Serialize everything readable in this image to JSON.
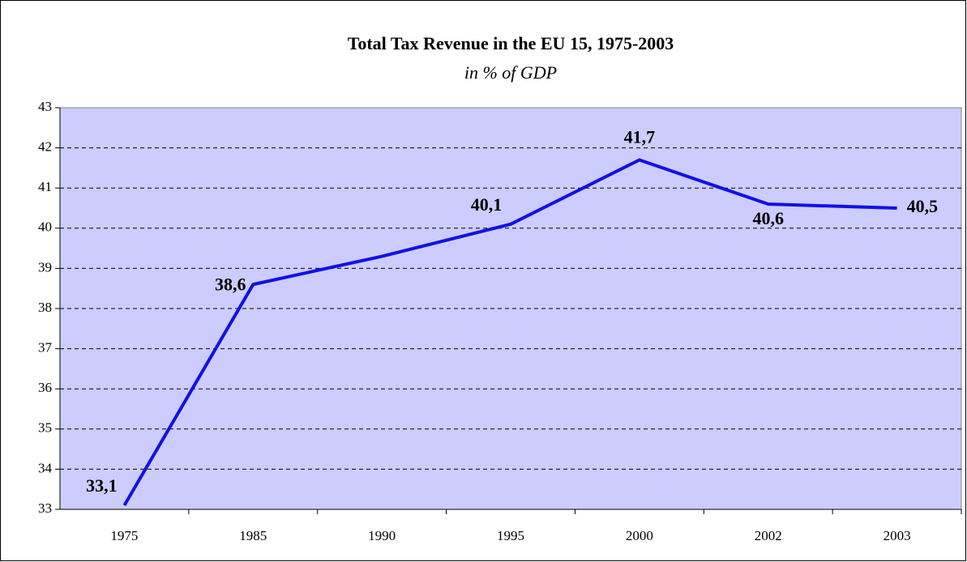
{
  "chart_data": {
    "type": "line",
    "title": "Total Tax Revenue in the EU 15, 1975-2003",
    "subtitle": "in % of GDP",
    "categories": [
      "1975",
      "1985",
      "1990",
      "1995",
      "2000",
      "2002",
      "2003"
    ],
    "series": [
      {
        "name": "Total Tax Revenue",
        "color": "#1010e8",
        "values": [
          33.1,
          38.6,
          39.3,
          40.1,
          41.7,
          40.6,
          40.5
        ],
        "value_labels": [
          "33,1",
          "38,6",
          null,
          "40,1",
          "41,7",
          "40,6",
          "40,5"
        ]
      }
    ],
    "ylim": [
      33,
      43
    ],
    "yticks": [
      33,
      34,
      35,
      36,
      37,
      38,
      39,
      40,
      41,
      42,
      43
    ],
    "grid": true,
    "plot_background": "#ccccff"
  }
}
